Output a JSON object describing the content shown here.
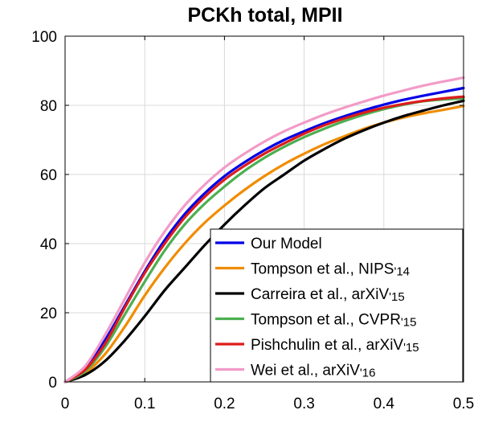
{
  "chart_data": {
    "type": "line",
    "title": "PCKh total, MPII",
    "xlabel": "",
    "ylabel": "",
    "xlim": [
      0,
      0.5
    ],
    "ylim": [
      0,
      100
    ],
    "grid": true,
    "legend_position": "bottom-right",
    "x_ticks": [
      "0",
      "0.1",
      "0.2",
      "0.3",
      "0.4",
      "0.5"
    ],
    "y_ticks": [
      "0",
      "20",
      "40",
      "60",
      "80",
      "100"
    ],
    "x": [
      0,
      0.025,
      0.05,
      0.075,
      0.1,
      0.125,
      0.15,
      0.175,
      0.2,
      0.225,
      0.25,
      0.275,
      0.3,
      0.325,
      0.35,
      0.375,
      0.4,
      0.425,
      0.45,
      0.475,
      0.5
    ],
    "series": [
      {
        "name": "Our Model",
        "color": "#0000e6",
        "values": [
          0,
          4,
          12,
          22,
          32,
          41,
          48.5,
          54.5,
          59.5,
          63.5,
          67,
          70,
          72.5,
          74.8,
          76.8,
          78.6,
          80.2,
          81.6,
          82.8,
          83.9,
          85
        ]
      },
      {
        "name": "Tompson et al., NIPS'14",
        "color": "#f08c00",
        "values": [
          0,
          2.5,
          8,
          16,
          25,
          33,
          40,
          46,
          51,
          55.5,
          59.5,
          63,
          66,
          68.7,
          71,
          73.2,
          75,
          76.5,
          77.7,
          78.7,
          79.8
        ]
      },
      {
        "name": "Carreira et al., arXiV'15",
        "color": "#000000",
        "values": [
          0,
          2,
          6,
          12,
          19,
          26.5,
          33,
          39.5,
          45.5,
          51,
          56,
          60,
          64,
          67.3,
          70.3,
          72.8,
          75,
          76.9,
          78.5,
          80,
          81.3
        ]
      },
      {
        "name": "Tompson et al., CVPR'15",
        "color": "#4caf50",
        "values": [
          0,
          3,
          10,
          19.5,
          29,
          38,
          45.5,
          51.5,
          56.5,
          61,
          64.8,
          68,
          70.8,
          73.2,
          75.4,
          77.3,
          78.9,
          80.2,
          81.2,
          81.7,
          82
        ]
      },
      {
        "name": "Pishchulin et al., arXiV'15",
        "color": "#dd1c1c",
        "values": [
          0,
          3.5,
          11,
          21.5,
          31.5,
          40,
          47.5,
          53.5,
          58.5,
          62.5,
          66,
          69,
          71.8,
          74.2,
          76.2,
          77.9,
          79.3,
          80.4,
          81.3,
          82,
          82.5
        ]
      },
      {
        "name": "Wei et al., arXiV'16",
        "color": "#f29bc8",
        "values": [
          0,
          4.5,
          13.5,
          24,
          34.5,
          43.5,
          51,
          57,
          62,
          66,
          69.5,
          72.5,
          75,
          77.3,
          79.3,
          81.1,
          82.8,
          84.3,
          85.7,
          86.9,
          88
        ]
      }
    ],
    "legend_labels": [
      {
        "main": "Our Model",
        "sub": ""
      },
      {
        "main": "Tompson et al., NIPS",
        "sub": "'14"
      },
      {
        "main": "Carreira et al., arXiV",
        "sub": "'15"
      },
      {
        "main": "Tompson et al., CVPR",
        "sub": "'15"
      },
      {
        "main": "Pishchulin et al., arXiV",
        "sub": "'15"
      },
      {
        "main": "Wei et al., arXiV",
        "sub": "'16"
      }
    ]
  }
}
